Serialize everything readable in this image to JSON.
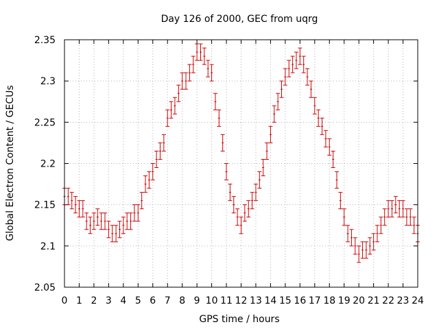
{
  "chart_data": {
    "type": "scatter",
    "title": "Day 126 of 2000, GEC from uqrg",
    "xlabel": "GPS time / hours",
    "ylabel": "Global Electron Content / GECUs",
    "xlim": [
      0,
      24
    ],
    "ylim": [
      2.05,
      2.35
    ],
    "grid": true,
    "x_ticks": [
      0,
      1,
      2,
      3,
      4,
      5,
      6,
      7,
      8,
      9,
      10,
      11,
      12,
      13,
      14,
      15,
      16,
      17,
      18,
      19,
      20,
      21,
      22,
      23,
      24
    ],
    "y_ticks": [
      2.05,
      2.1,
      2.15,
      2.2,
      2.25,
      2.3,
      2.35
    ],
    "x_tick_labels": [
      "0",
      "1",
      "2",
      "3",
      "4",
      "5",
      "6",
      "7",
      "8",
      "9",
      "10",
      "11",
      "12",
      "13",
      "14",
      "15",
      "16",
      "17",
      "18",
      "19",
      "20",
      "21",
      "22",
      "23",
      "24"
    ],
    "y_tick_labels": [
      "2.05",
      "2.1",
      "2.15",
      "2.2",
      "2.25",
      "2.3",
      "2.35"
    ],
    "error": 0.01,
    "colors": {
      "series": "#cc0000",
      "grid": "#b0b0b0",
      "axis": "#000000"
    },
    "series": [
      {
        "x": [
          0,
          0.25,
          0.5,
          0.75,
          1,
          1.25,
          1.5,
          1.75,
          2,
          2.25,
          2.5,
          2.75,
          3,
          3.25,
          3.5,
          3.75,
          4,
          4.25,
          4.5,
          4.75,
          5,
          5.25,
          5.5,
          5.75,
          6,
          6.25,
          6.5,
          6.75,
          7,
          7.25,
          7.5,
          7.75,
          8,
          8.25,
          8.5,
          8.75,
          9,
          9.25,
          9.5,
          9.75,
          10,
          10.25,
          10.5,
          10.75,
          11,
          11.25,
          11.5,
          11.75,
          12,
          12.25,
          12.5,
          12.75,
          13,
          13.25,
          13.5,
          13.75,
          14,
          14.25,
          14.5,
          14.75,
          15,
          15.25,
          15.5,
          15.75,
          16,
          16.25,
          16.5,
          16.75,
          17,
          17.25,
          17.5,
          17.75,
          18,
          18.25,
          18.5,
          18.75,
          19,
          19.25,
          19.5,
          19.75,
          20,
          20.25,
          20.5,
          20.75,
          21,
          21.25,
          21.5,
          21.75,
          22,
          22.25,
          22.5,
          22.75,
          23,
          23.25,
          23.5,
          23.75,
          24
        ],
        "y": [
          2.16,
          2.16,
          2.155,
          2.15,
          2.145,
          2.145,
          2.13,
          2.125,
          2.13,
          2.135,
          2.13,
          2.13,
          2.12,
          2.115,
          2.115,
          2.12,
          2.125,
          2.13,
          2.13,
          2.14,
          2.14,
          2.155,
          2.175,
          2.18,
          2.19,
          2.205,
          2.215,
          2.225,
          2.255,
          2.265,
          2.27,
          2.285,
          2.3,
          2.3,
          2.31,
          2.32,
          2.335,
          2.335,
          2.33,
          2.315,
          2.31,
          2.275,
          2.255,
          2.225,
          2.19,
          2.165,
          2.15,
          2.135,
          2.125,
          2.14,
          2.145,
          2.155,
          2.165,
          2.18,
          2.195,
          2.215,
          2.235,
          2.26,
          2.275,
          2.29,
          2.305,
          2.315,
          2.32,
          2.325,
          2.33,
          2.32,
          2.305,
          2.29,
          2.27,
          2.255,
          2.245,
          2.23,
          2.22,
          2.205,
          2.18,
          2.155,
          2.135,
          2.115,
          2.11,
          2.1,
          2.09,
          2.095,
          2.095,
          2.1,
          2.105,
          2.115,
          2.125,
          2.135,
          2.145,
          2.145,
          2.15,
          2.145,
          2.145,
          2.135,
          2.135,
          2.125,
          2.115
        ]
      }
    ]
  }
}
